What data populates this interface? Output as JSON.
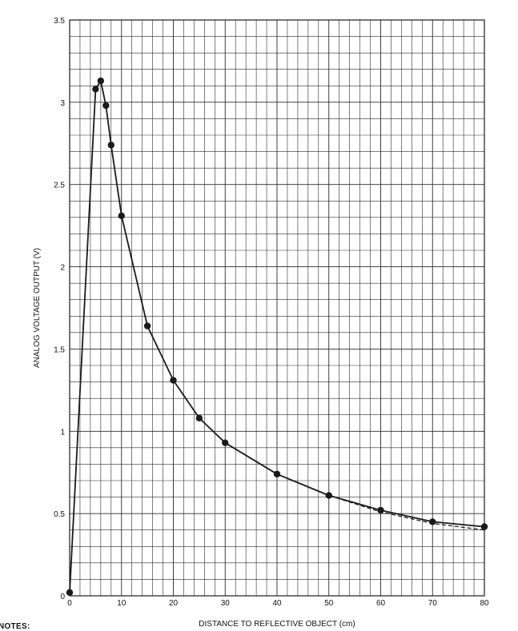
{
  "chart_data": {
    "type": "line",
    "title": "",
    "xlabel": "DISTANCE TO REFLECTIVE OBJECT (cm)",
    "ylabel": "ANALOG VOLTAGE OUTPUT (V)",
    "xlim": [
      0,
      80
    ],
    "ylim": [
      0,
      3.5
    ],
    "x_ticks": [
      0,
      10,
      20,
      30,
      40,
      50,
      60,
      70,
      80
    ],
    "y_ticks": [
      0,
      0.5,
      1,
      1.5,
      2,
      2.5,
      3,
      3.5
    ],
    "x_tick_labels": [
      "0",
      "10",
      "20",
      "30",
      "40",
      "50",
      "60",
      "70",
      "80"
    ],
    "y_tick_labels": [
      "0",
      "0.5",
      "1",
      "1.5",
      "2",
      "2.5",
      "3",
      "3.5"
    ],
    "grid": true,
    "series": [
      {
        "style": "solid-with-markers",
        "color": "#1a1a1a",
        "x": [
          0,
          5,
          6,
          7,
          8,
          10,
          15,
          20,
          25,
          30,
          40,
          50,
          60,
          70,
          80
        ],
        "y": [
          0.02,
          3.08,
          3.13,
          2.98,
          2.74,
          2.31,
          1.64,
          1.31,
          1.08,
          0.93,
          0.74,
          0.61,
          0.52,
          0.45,
          0.42
        ]
      },
      {
        "style": "dashed",
        "color": "#1a1a1a",
        "x": [
          40,
          50,
          60,
          70,
          80
        ],
        "y": [
          0.74,
          0.61,
          0.51,
          0.44,
          0.4
        ]
      }
    ]
  },
  "notes_label": "NOTES:"
}
